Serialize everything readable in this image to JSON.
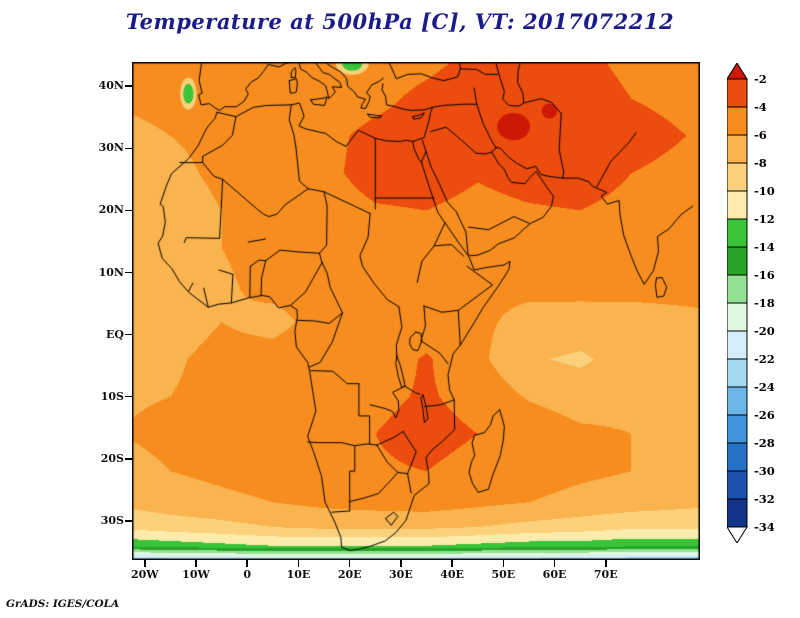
{
  "title": "Temperature at 500hPa [C], VT: 2017072212",
  "footer": "GrADS: IGES/COLA",
  "colors": {
    "title": "#1b1b8a",
    "frame": "#000000",
    "map_lines": "#000000",
    "background": "#ffffff"
  },
  "chart_data": {
    "type": "heatmap",
    "title": "Temperature at 500hPa [C], VT: 2017072212",
    "variable": "Temperature",
    "level": "500hPa",
    "units": "C",
    "valid_time": "2017072212",
    "lon_range": [
      -22.5,
      88.4
    ],
    "lat_range": [
      -36.3,
      43.9
    ],
    "x_axis": {
      "ticks": [
        {
          "label": "20W",
          "value": -20
        },
        {
          "label": "10W",
          "value": -10
        },
        {
          "label": "0",
          "value": 0
        },
        {
          "label": "10E",
          "value": 10
        },
        {
          "label": "20E",
          "value": 20
        },
        {
          "label": "30E",
          "value": 30
        },
        {
          "label": "40E",
          "value": 40
        },
        {
          "label": "50E",
          "value": 50
        },
        {
          "label": "60E",
          "value": 60
        },
        {
          "label": "70E",
          "value": 70
        }
      ]
    },
    "y_axis": {
      "ticks": [
        {
          "label": "40N",
          "value": 40
        },
        {
          "label": "30N",
          "value": 30
        },
        {
          "label": "20N",
          "value": 20
        },
        {
          "label": "10N",
          "value": 10
        },
        {
          "label": "EQ",
          "value": 0
        },
        {
          "label": "10S",
          "value": -10
        },
        {
          "label": "20S",
          "value": -20
        },
        {
          "label": "30S",
          "value": -30
        }
      ]
    },
    "colorbar": {
      "step": 2,
      "levels": [
        -2,
        -4,
        -6,
        -8,
        -10,
        -12,
        -14,
        -16,
        -18,
        -20,
        -22,
        -24,
        -26,
        -28,
        -30,
        -32,
        -34
      ],
      "labels": [
        "-2",
        "-4",
        "-6",
        "-8",
        "-10",
        "-12",
        "-14",
        "-16",
        "-18",
        "-20",
        "-22",
        "-24",
        "-26",
        "-28",
        "-30",
        "-32",
        "-34"
      ],
      "above_color": "#cc1804",
      "cell_colors": [
        "#ec4c0d",
        "#f68d1e",
        "#f9b34f",
        "#fbd17c",
        "#fcebaa",
        "#39c439",
        "#27a427",
        "#93e093",
        "#def7de",
        "#d4edf9",
        "#a3d7f2",
        "#6cb5e8",
        "#4194dc",
        "#2871c9",
        "#1d51af",
        "#133589"
      ],
      "below_color": "#ffffff",
      "label_color": "#000000"
    },
    "grid": {
      "lons": [
        -25,
        -15,
        -5,
        5,
        15,
        25,
        35,
        45,
        55,
        65,
        75,
        90
      ],
      "lats": [
        44,
        38,
        32,
        26,
        20,
        14,
        8,
        2,
        -4,
        -10,
        -16,
        -22,
        -27,
        -31,
        -34,
        -37
      ],
      "temps": [
        [
          -5.8,
          -5.6,
          -5.5,
          -5.5,
          -5.8,
          -5.0,
          -4.5,
          -3.5,
          -3.0,
          -3.5,
          -4.5,
          -5.0
        ],
        [
          -5.8,
          -5.5,
          -5.2,
          -5.0,
          -5.0,
          -4.5,
          -3.5,
          -2.6,
          -2.4,
          -3.0,
          -4.0,
          -4.5
        ],
        [
          -6.5,
          -6.0,
          -5.5,
          -5.0,
          -4.5,
          -3.5,
          -3.0,
          -2.6,
          -2.4,
          -3.0,
          -3.5,
          -4.2
        ],
        [
          -7.0,
          -6.5,
          -5.6,
          -5.0,
          -4.5,
          -3.2,
          -3.0,
          -3.8,
          -3.2,
          -3.0,
          -4.0,
          -4.5
        ],
        [
          -7.6,
          -7.0,
          -6.0,
          -5.2,
          -5.0,
          -4.2,
          -4.0,
          -4.6,
          -4.2,
          -4.0,
          -4.6,
          -5.0
        ],
        [
          -7.6,
          -6.6,
          -6.0,
          -5.5,
          -5.0,
          -5.0,
          -4.6,
          -5.0,
          -5.0,
          -4.6,
          -5.0,
          -5.5
        ],
        [
          -7.4,
          -7.0,
          -6.2,
          -5.6,
          -5.5,
          -5.5,
          -5.0,
          -5.6,
          -5.5,
          -5.2,
          -5.5,
          -5.6
        ],
        [
          -7.0,
          -6.6,
          -6.0,
          -6.4,
          -5.5,
          -5.2,
          -5.0,
          -5.6,
          -6.6,
          -7.0,
          -6.6,
          -6.2
        ],
        [
          -6.6,
          -6.2,
          -5.6,
          -5.5,
          -5.2,
          -5.0,
          -3.8,
          -5.5,
          -7.8,
          -8.3,
          -7.2,
          -6.6
        ],
        [
          -6.2,
          -6.0,
          -5.6,
          -5.0,
          -4.6,
          -4.4,
          -3.8,
          -4.6,
          -6.2,
          -7.0,
          -6.6,
          -6.0
        ],
        [
          -6.0,
          -5.6,
          -5.4,
          -5.0,
          -4.5,
          -4.0,
          -3.4,
          -4.0,
          -4.6,
          -5.6,
          -6.0,
          -6.0
        ],
        [
          -6.6,
          -6.0,
          -5.5,
          -5.0,
          -4.6,
          -4.2,
          -4.0,
          -4.6,
          -5.0,
          -5.6,
          -6.0,
          -6.5
        ],
        [
          -7.6,
          -7.0,
          -6.5,
          -6.0,
          -5.5,
          -5.2,
          -5.0,
          -5.5,
          -6.0,
          -6.6,
          -7.0,
          -7.6
        ],
        [
          -9.6,
          -9.0,
          -8.6,
          -8.0,
          -7.6,
          -7.6,
          -7.6,
          -8.0,
          -8.6,
          -9.0,
          -9.6,
          -9.6
        ],
        [
          -13.5,
          -13.0,
          -12.5,
          -12.0,
          -12.0,
          -12.0,
          -12.0,
          -12.5,
          -13.0,
          -13.0,
          -13.5,
          -13.5
        ],
        [
          -27.0,
          -26.0,
          -26.0,
          -25.5,
          -25.5,
          -25.5,
          -25.5,
          -26.0,
          -26.0,
          -26.5,
          -27.0,
          -27.0
        ]
      ]
    },
    "cold_spots": [
      {
        "lon": 20.5,
        "lat": 43.6,
        "temp": -13,
        "rlon": 2.0,
        "rlat": 1.1
      },
      {
        "lon": -11.5,
        "lat": 38.8,
        "temp": -13,
        "rlon": 1.0,
        "rlat": 1.6
      }
    ],
    "hot_spots": [
      {
        "lon": 52.0,
        "lat": 33.5,
        "temp": -1.5,
        "rlon": 3.2,
        "rlat": 2.2
      },
      {
        "lon": 59.0,
        "lat": 36.0,
        "temp": -1.8,
        "rlon": 1.5,
        "rlat": 1.2
      }
    ]
  }
}
